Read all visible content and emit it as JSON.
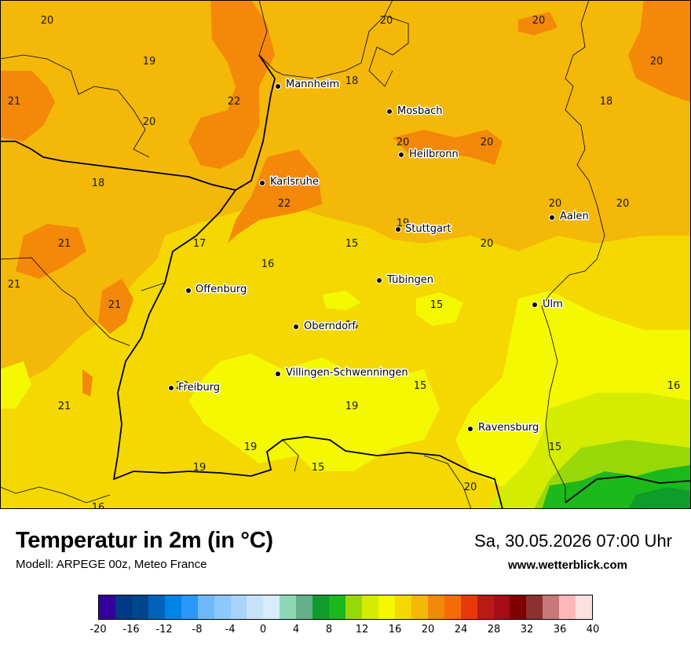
{
  "title": "Temperatur in 2m (in °C)",
  "subtitle": "Modell: ARPEGE 00z, Meteo France",
  "datetime": "Sa, 30.05.2026 07:00 Uhr",
  "website": "www.wetterblick.com",
  "legend": {
    "colors": [
      "#330099",
      "#003a88",
      "#00468c",
      "#0062b8",
      "#0084e8",
      "#2a98f8",
      "#70b8fc",
      "#8cc8fc",
      "#a8d4fc",
      "#c8e2fc",
      "#d8ecfc",
      "#8ed8b8",
      "#64b08a",
      "#109c2a",
      "#1cb81c",
      "#98d808",
      "#d4ec00",
      "#f4f800",
      "#f4d800",
      "#f4b808",
      "#f48808",
      "#f46c08",
      "#e83808",
      "#b81a14",
      "#a80c18",
      "#800000",
      "#8c3030",
      "#c87878",
      "#fcb8b8",
      "#fce0e0"
    ],
    "tick_labels": [
      "-20",
      "-16",
      "-12",
      "-8",
      "-4",
      "0",
      "4",
      "8",
      "12",
      "16",
      "20",
      "24",
      "28",
      "32",
      "36",
      "40"
    ]
  },
  "cities": [
    {
      "name": "Mannheim"
    },
    {
      "name": "Mosbach"
    },
    {
      "name": "Heilbronn"
    },
    {
      "name": "Karlsruhe"
    },
    {
      "name": "Aalen"
    },
    {
      "name": "Stuttgart"
    },
    {
      "name": "Tübingen"
    },
    {
      "name": "Offenburg"
    },
    {
      "name": "Ulm"
    },
    {
      "name": "Oberndorf"
    },
    {
      "name": "Villingen-Schwenningen"
    },
    {
      "name": "Freiburg"
    },
    {
      "name": "Ravensburg"
    }
  ],
  "values": [
    "20",
    "20",
    "20",
    "19",
    "20",
    "21",
    "22",
    "18",
    "18",
    "20",
    "20",
    "20",
    "18",
    "22",
    "20",
    "19",
    "20",
    "21",
    "17",
    "16",
    "15",
    "21",
    "20",
    "21",
    "15",
    "18",
    "15",
    "16",
    "20",
    "21",
    "19",
    "19",
    "15",
    "19",
    "15",
    "20",
    "16"
  ]
}
